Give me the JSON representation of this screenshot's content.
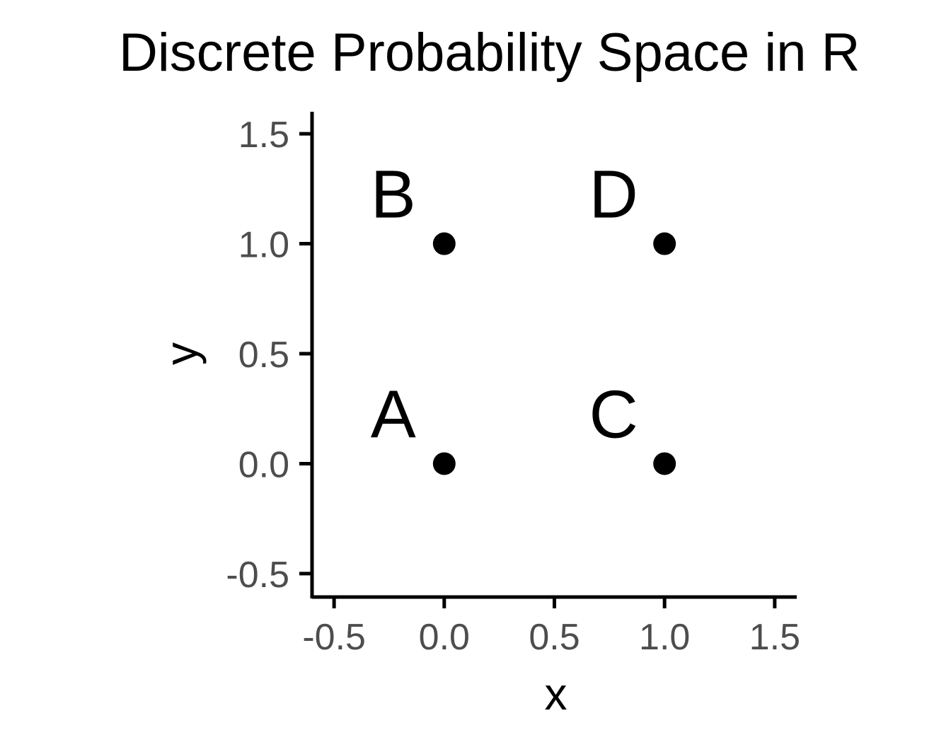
{
  "chart_data": {
    "type": "scatter",
    "title": "Discrete Probability Space in R",
    "xlabel": "x",
    "ylabel": "y",
    "xlim": [
      -0.6,
      1.6
    ],
    "ylim": [
      -0.6,
      1.6
    ],
    "x_ticks": [
      -0.5,
      0.0,
      0.5,
      1.0,
      1.5
    ],
    "x_tick_labels": [
      "-0.5",
      "0.0",
      "0.5",
      "1.0",
      "1.5"
    ],
    "y_ticks": [
      -0.5,
      0.0,
      0.5,
      1.0,
      1.5
    ],
    "y_tick_labels": [
      "-0.5",
      "0.0",
      "0.5",
      "1.0",
      "1.5"
    ],
    "grid": false,
    "points": [
      {
        "label": "A",
        "x": 0,
        "y": 0
      },
      {
        "label": "B",
        "x": 0,
        "y": 1
      },
      {
        "label": "C",
        "x": 1,
        "y": 0
      },
      {
        "label": "D",
        "x": 1,
        "y": 1
      }
    ],
    "colors": {
      "points": "#000000",
      "axis": "#000000",
      "tick_labels": "#4d4d4d"
    }
  }
}
